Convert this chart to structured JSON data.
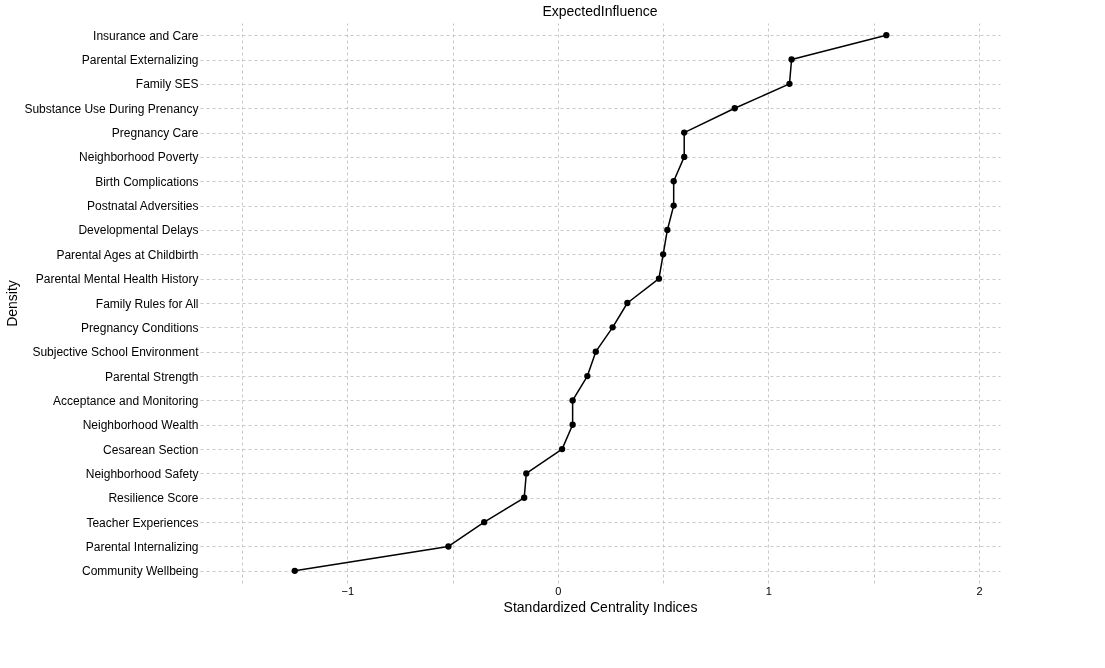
{
  "chart_data": {
    "type": "line",
    "title": "ExpectedInfluence",
    "xlabel": "Standardized Centrality Indices",
    "ylabel": "Density",
    "orientation": "horizontal",
    "categories": [
      "Insurance and Care",
      "Parental Externalizing",
      "Family SES",
      "Substance Use During Prenancy",
      "Pregnancy Care",
      "Neighborhood Poverty",
      "Birth Complications",
      "Postnatal Adversities",
      "Developmental Delays",
      "Parental Ages at Childbirth",
      "Parental Mental Health History",
      "Family Rules for All",
      "Pregnancy Conditions",
      "Subjective School Environment",
      "Parental Strength",
      "Acceptance and Monitoring",
      "Neighborhood Wealth",
      "Cesarean Section",
      "Neighborhood Safety",
      "Resilience Score",
      "Teacher Experiences",
      "Parental Internalizing",
      "Community Wellbeing"
    ],
    "series": [
      {
        "color": "#000000",
        "values": [
          1.56,
          1.11,
          1.1,
          0.84,
          0.6,
          0.6,
          0.55,
          0.55,
          0.52,
          0.5,
          0.48,
          0.33,
          0.26,
          0.18,
          0.14,
          0.07,
          0.07,
          0.02,
          -0.15,
          -0.16,
          -0.35,
          -0.52,
          -1.25
        ]
      }
    ],
    "xlim": [
      -1.7,
      2.1
    ],
    "xticks": [
      {
        "value": -1.5,
        "label": null
      },
      {
        "value": -1,
        "label": "−1"
      },
      {
        "value": -0.5,
        "label": null
      },
      0,
      {
        "value": 0.5,
        "label": null
      },
      1,
      {
        "value": 1.5,
        "label": null
      },
      2
    ],
    "grid": true,
    "marker": "circle",
    "line_style": "solid"
  }
}
